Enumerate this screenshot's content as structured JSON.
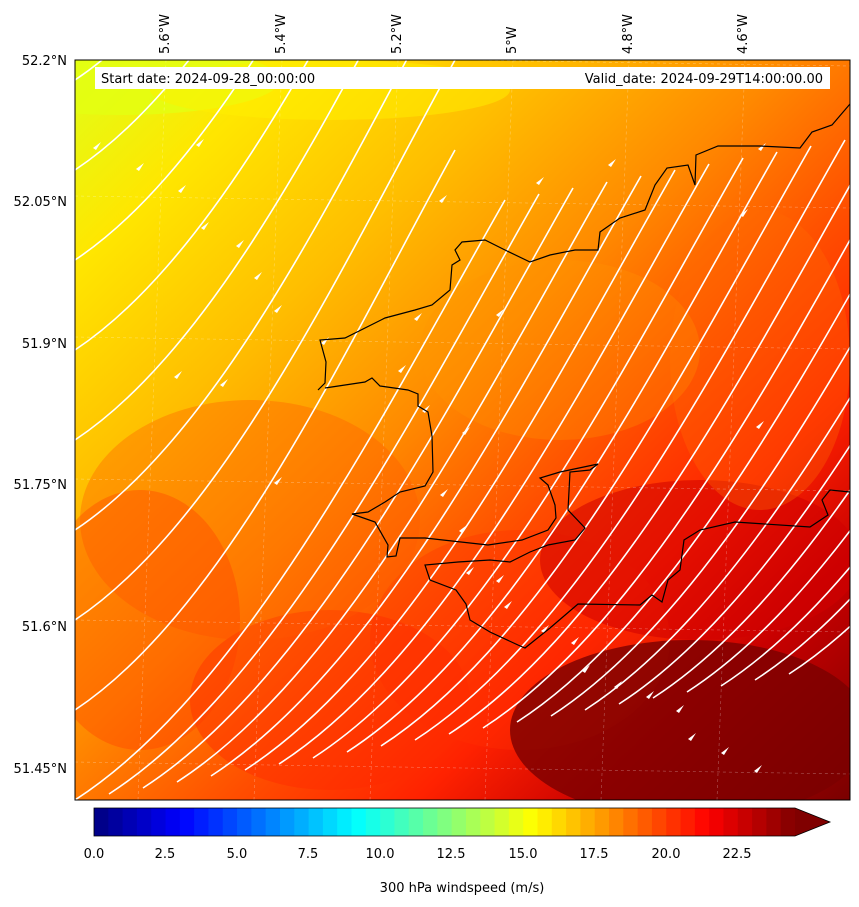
{
  "header": {
    "start_label": "Start date: 2024-09-28_00:00:00",
    "valid_label": "Valid_date: 2024-09-29T14:00:00.00"
  },
  "axes": {
    "lon_ticks": [
      "5.6°W",
      "5.4°W",
      "5.2°W",
      "5°W",
      "4.8°W",
      "4.6°W"
    ],
    "lat_ticks": [
      "52.2°N",
      "52.05°N",
      "51.9°N",
      "51.75°N",
      "51.6°N",
      "51.45°N"
    ]
  },
  "colorbar": {
    "label": "300 hPa windspeed (m/s)",
    "ticks": [
      "0.0",
      "2.5",
      "5.0",
      "7.5",
      "10.0",
      "12.5",
      "15.0",
      "17.5",
      "20.0",
      "22.5"
    ],
    "min": 0,
    "max": 25,
    "extend": "max",
    "colormap": "jet"
  },
  "field": {
    "variable": "300 hPa windspeed",
    "units": "m/s",
    "range_shown": [
      15.5,
      25
    ],
    "gradient": "increasing from top-left to bottom-right",
    "colors": {
      "low": "#e5ff10",
      "mid": "#ffc400",
      "high": "#ff2800",
      "max": "#800000"
    },
    "streamlines": "white, flowing toward north-east"
  },
  "coastline_color": "#000000"
}
